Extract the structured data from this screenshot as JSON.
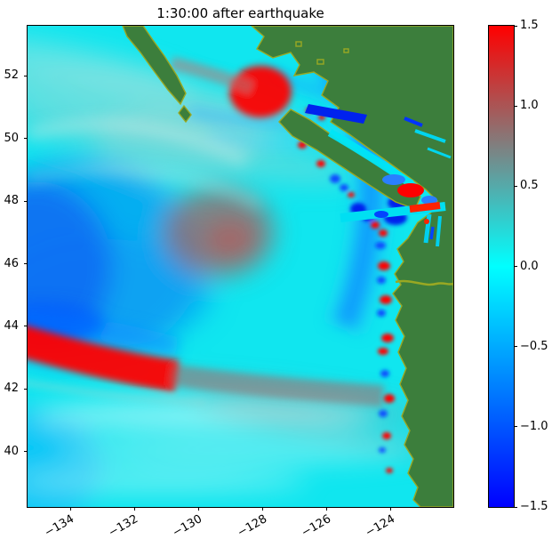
{
  "title": "1:30:00 after earthquake",
  "chart_data": {
    "type": "heatmap",
    "title": "1:30:00 after earthquake",
    "xlabel": "",
    "ylabel": "",
    "grid": false,
    "legend": false,
    "x_axis": {
      "ticks": [
        -134,
        -132,
        -130,
        -128,
        -126,
        -124
      ],
      "tick_labels": [
        "−134",
        "−132",
        "−130",
        "−128",
        "−126",
        "−124"
      ],
      "range": [
        -135.34,
        -122.05
      ],
      "tick_rotation_deg": 30
    },
    "y_axis": {
      "ticks": [
        52,
        50,
        48,
        46,
        44,
        42,
        40
      ],
      "tick_labels": [
        "52",
        "50",
        "48",
        "46",
        "44",
        "42",
        "40"
      ],
      "range": [
        38.24,
        53.59
      ]
    },
    "colorbar": {
      "range": [
        -1.5,
        1.5
      ],
      "ticks": [
        1.5,
        1.0,
        0.5,
        0.0,
        -0.5,
        -1.0,
        -1.5
      ],
      "tick_labels": [
        "1.5",
        "1.0",
        "0.5",
        "0.0",
        "−0.5",
        "−1.0",
        "−1.5"
      ],
      "gradient_stops": [
        {
          "value": -1.5,
          "color": "#0000ff"
        },
        {
          "value": 0.0,
          "color": "#00ffff"
        },
        {
          "value": 1.5,
          "color": "#ff0000"
        }
      ]
    },
    "features": [
      {
        "description": "strong positive (red) leading wave arc in the southwest",
        "lon_range": [
          -135.3,
          -128.0
        ],
        "lat": 42.6
      },
      {
        "description": "large negative (blue) drawdown region offshore west of the source",
        "lon": -134.0,
        "lat": 46.0
      },
      {
        "description": "weak positive (gray-red) patch over the source region",
        "lon": -129.5,
        "lat": 46.6
      },
      {
        "description": "strong positive (red) patch in Queen Charlotte Sound near north Vancouver Island",
        "lon": -127.2,
        "lat": 51.3
      },
      {
        "description": "blue depression band hugging the shelf edge along the coast",
        "lon": -125.3,
        "lat_range": [
          44.0,
          50.0
        ]
      },
      {
        "description": "alternating red/blue reflection patches along the Washington-Oregon coast",
        "lon": -124.4,
        "lat_range": [
          40.0,
          48.5
        ]
      },
      {
        "description": "green land: British Columbia mainland, Vancouver Island, Haida Gwaii, Washington and Oregon coast with olive shoreline fringe and Columbia River"
      }
    ]
  },
  "colors": {
    "figure_bg": "#ffffff",
    "ocean": "#10e6ef",
    "land": "#3c7e3c",
    "shoreline": "#99a823",
    "wave_positive": "#ff0000",
    "wave_negative": "#0022ee"
  }
}
